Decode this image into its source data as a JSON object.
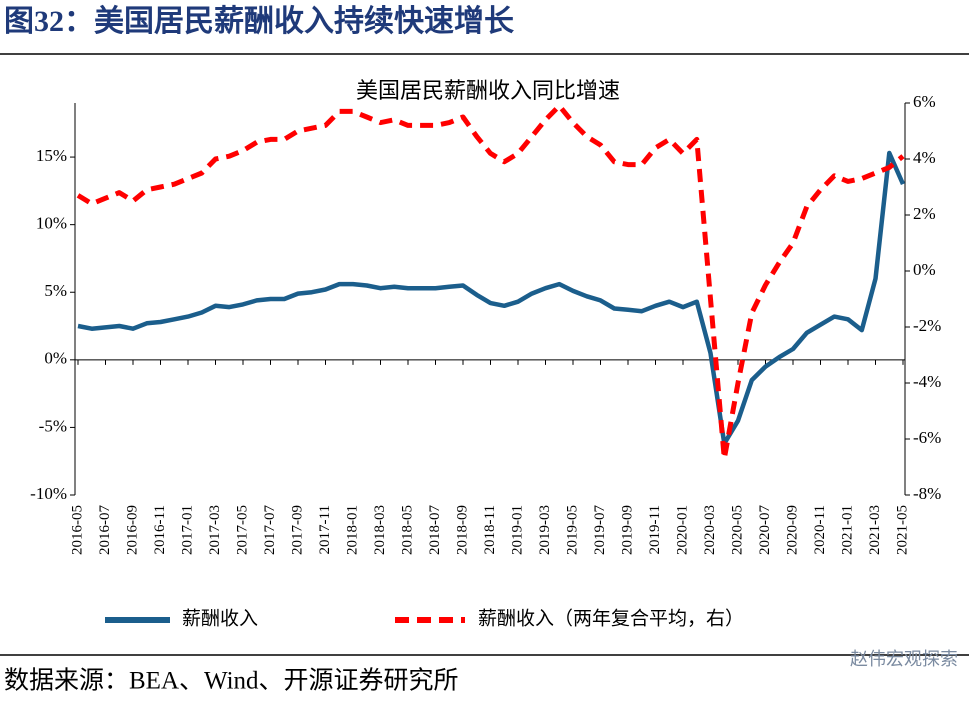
{
  "header": {
    "title": "图32：美国居民薪酬收入持续快速增长"
  },
  "chart_data": {
    "type": "line",
    "title": "美国居民薪酬收入同比增速",
    "categories": [
      "2016-05",
      null,
      "2016-07",
      null,
      "2016-09",
      null,
      "2016-11",
      null,
      "2017-01",
      null,
      "2017-03",
      null,
      "2017-05",
      null,
      "2017-07",
      null,
      "2017-09",
      null,
      "2017-11",
      null,
      "2018-01",
      null,
      "2018-03",
      null,
      "2018-05",
      null,
      "2018-07",
      null,
      "2018-09",
      null,
      "2018-11",
      null,
      "2019-01",
      null,
      "2019-03",
      null,
      "2019-05",
      null,
      "2019-07",
      null,
      "2019-09",
      null,
      "2019-11",
      null,
      "2020-01",
      null,
      "2020-03",
      null,
      "2020-05",
      null,
      "2020-07",
      null,
      "2020-09",
      null,
      "2020-11",
      null,
      "2021-01",
      null,
      "2021-03",
      null,
      "2021-05"
    ],
    "series": [
      {
        "name": "薪酬收入",
        "color": "#1b5e8c",
        "dash": false,
        "values": [
          2.5,
          2.3,
          2.4,
          2.5,
          2.3,
          2.7,
          2.8,
          3.0,
          3.2,
          3.5,
          4.0,
          3.9,
          4.1,
          4.4,
          4.5,
          4.5,
          4.9,
          5.0,
          5.2,
          5.6,
          5.6,
          5.5,
          5.3,
          5.4,
          5.3,
          5.3,
          5.3,
          5.4,
          5.5,
          4.8,
          4.2,
          4.0,
          4.3,
          4.9,
          5.3,
          5.6,
          5.1,
          4.7,
          4.4,
          3.8,
          3.7,
          3.6,
          4.0,
          4.3,
          3.9,
          4.3,
          0.5,
          -6.2,
          -4.5,
          -1.5,
          -0.5,
          0.2,
          0.8,
          2.0,
          2.6,
          3.2,
          3.0,
          2.2,
          6.0,
          15.3,
          13.0
        ]
      },
      {
        "name": "薪酬收入（两年复合平均，右）",
        "color": "#ff0000",
        "dash": true,
        "axis": "y2",
        "values": [
          2.7,
          2.4,
          2.6,
          2.8,
          2.5,
          2.9,
          3.0,
          3.1,
          3.3,
          3.5,
          4.0,
          4.1,
          4.3,
          4.6,
          4.7,
          4.7,
          5.0,
          5.1,
          5.2,
          5.7,
          5.7,
          5.5,
          5.3,
          5.4,
          5.2,
          5.2,
          5.2,
          5.3,
          5.5,
          4.8,
          4.2,
          3.9,
          4.2,
          4.8,
          5.4,
          5.9,
          5.3,
          4.8,
          4.5,
          3.9,
          3.8,
          3.8,
          4.4,
          4.7,
          4.2,
          4.7,
          -1.0,
          -6.7,
          -4.0,
          -1.5,
          -0.5,
          0.3,
          1.0,
          2.3,
          2.9,
          3.4,
          3.2,
          3.3,
          3.5,
          3.7,
          4.1
        ]
      }
    ],
    "ylim": [
      -10,
      19
    ],
    "yticks": [
      {
        "value": -10,
        "label": "-10%"
      },
      {
        "value": -5,
        "label": "-5%"
      },
      {
        "value": 0,
        "label": "0%"
      },
      {
        "value": 5,
        "label": "5%"
      },
      {
        "value": 10,
        "label": "10%"
      },
      {
        "value": 15,
        "label": "15%"
      }
    ],
    "y2lim": [
      -8,
      6
    ],
    "y2ticks": [
      {
        "value": -8,
        "label": "-8%"
      },
      {
        "value": -6,
        "label": "-6%"
      },
      {
        "value": -4,
        "label": "-4%"
      },
      {
        "value": -2,
        "label": "-2%"
      },
      {
        "value": 0,
        "label": "0%"
      },
      {
        "value": 2,
        "label": "2%"
      },
      {
        "value": 4,
        "label": "4%"
      },
      {
        "value": 6,
        "label": "6%"
      }
    ],
    "grid": false,
    "legend": "bottom"
  },
  "footer": {
    "source": "数据来源：BEA、Wind、开源证券研究所",
    "watermark": "赵伟宏观探索"
  }
}
